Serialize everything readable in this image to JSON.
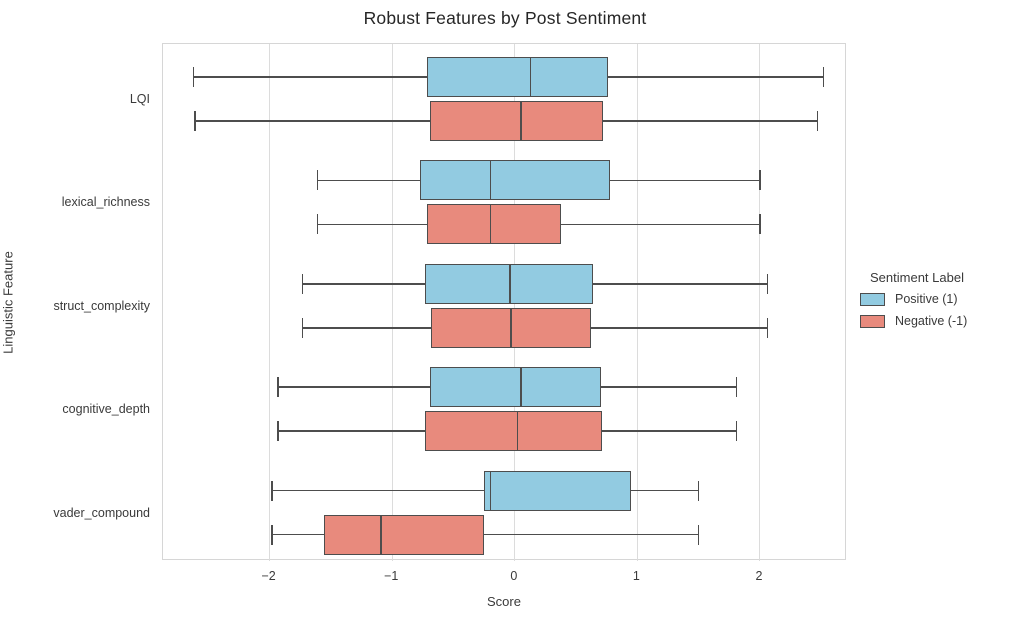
{
  "title": "Robust Features by Post Sentiment",
  "axis": {
    "xlabel": "Score",
    "ylabel": "Linguistic Feature",
    "xlim": [
      -2.87,
      2.71
    ],
    "x_ticks": [
      {
        "value": -2,
        "label": "−2"
      },
      {
        "value": -1,
        "label": "−1"
      },
      {
        "value": 0,
        "label": "0"
      },
      {
        "value": 1,
        "label": "1"
      },
      {
        "value": 2,
        "label": "2"
      }
    ],
    "grid": "vertical"
  },
  "legend": {
    "title": "Sentiment Label",
    "position": "right",
    "items": [
      {
        "label": "Positive (1)",
        "color": "#92cbe1"
      },
      {
        "label": "Negative (-1)",
        "color": "#e88a7d"
      }
    ]
  },
  "colors": {
    "positive": "#92cbe1",
    "negative": "#e88a7d",
    "box_edge": "#4d4d4d",
    "gridline": "#dcdcdc",
    "spine": "#d6d6d6",
    "text": "#3a3a3a"
  },
  "chart_data": {
    "type": "boxplot",
    "orientation": "horizontal",
    "title": "Robust Features by Post Sentiment",
    "xlabel": "Score",
    "ylabel": "Linguistic Feature",
    "xlim": [
      -2.87,
      2.71
    ],
    "categories": [
      "LQI",
      "lexical_richness",
      "struct_complexity",
      "cognitive_depth",
      "vader_compound"
    ],
    "series": [
      {
        "name": "Positive (1)",
        "color": "#92cbe1",
        "boxes": [
          {
            "whislo": -2.62,
            "q1": -0.72,
            "med": 0.13,
            "q3": 0.76,
            "whishi": 2.52
          },
          {
            "whislo": -1.61,
            "q1": -0.77,
            "med": -0.2,
            "q3": 0.78,
            "whishi": 2.0
          },
          {
            "whislo": -1.73,
            "q1": -0.73,
            "med": -0.04,
            "q3": 0.64,
            "whishi": 2.06
          },
          {
            "whislo": -1.93,
            "q1": -0.69,
            "med": 0.05,
            "q3": 0.7,
            "whishi": 1.81
          },
          {
            "whislo": -1.98,
            "q1": -0.25,
            "med": -0.2,
            "q3": 0.95,
            "whishi": 1.5
          }
        ]
      },
      {
        "name": "Negative (-1)",
        "color": "#e88a7d",
        "boxes": [
          {
            "whislo": -2.61,
            "q1": -0.69,
            "med": 0.05,
            "q3": 0.72,
            "whishi": 2.47
          },
          {
            "whislo": -1.61,
            "q1": -0.72,
            "med": -0.2,
            "q3": 0.38,
            "whishi": 2.0
          },
          {
            "whislo": -1.73,
            "q1": -0.68,
            "med": -0.03,
            "q3": 0.62,
            "whishi": 2.06
          },
          {
            "whislo": -1.93,
            "q1": -0.73,
            "med": 0.02,
            "q3": 0.71,
            "whishi": 1.81
          },
          {
            "whislo": -1.98,
            "q1": -1.56,
            "med": -1.09,
            "q3": -0.25,
            "whishi": 1.5
          }
        ]
      }
    ]
  }
}
